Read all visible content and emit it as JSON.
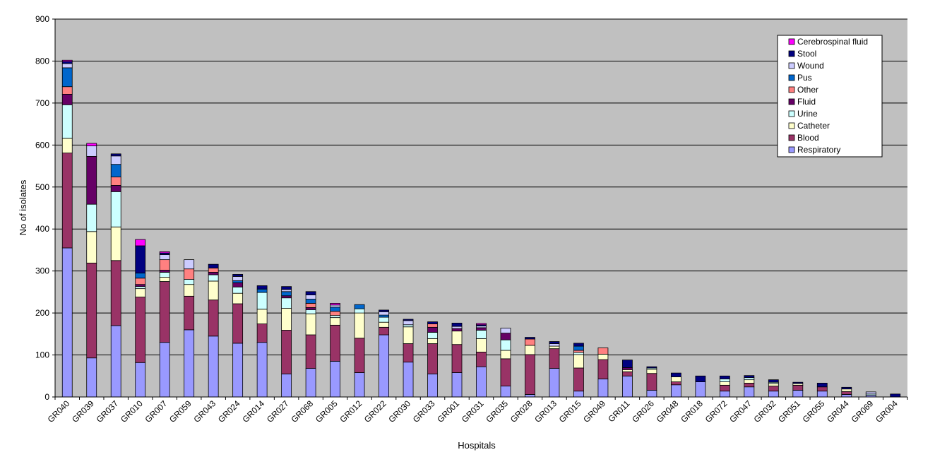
{
  "chart_data": {
    "type": "bar",
    "stacked": true,
    "title": "",
    "xlabel": "Hospitals",
    "ylabel": "No of isolates",
    "ylim": [
      0,
      900
    ],
    "yticks": [
      0,
      100,
      200,
      300,
      400,
      500,
      600,
      700,
      800,
      900
    ],
    "grid": true,
    "legend_position": "top-right",
    "plot_background": "#c0c0c0",
    "categories": [
      "GR040",
      "GR039",
      "GR037",
      "GR010",
      "GR007",
      "GR059",
      "GR043",
      "GR024",
      "GR014",
      "GR027",
      "GR068",
      "GR005",
      "GR012",
      "GR022",
      "GR030",
      "GR033",
      "GR001",
      "GR031",
      "GR035",
      "GR028",
      "GR013",
      "GR015",
      "GR049",
      "GR011",
      "GR026",
      "GR048",
      "GR018",
      "GR072",
      "GR047",
      "GR032",
      "GR051",
      "GR055",
      "GR044",
      "GR069",
      "GR004"
    ],
    "series": [
      {
        "name": "Respiratory",
        "color": "#9999ff",
        "values": [
          355,
          93,
          170,
          82,
          130,
          160,
          145,
          128,
          130,
          55,
          68,
          85,
          58,
          148,
          83,
          55,
          58,
          72,
          26,
          6,
          68,
          14,
          43,
          50,
          16,
          29,
          36,
          14,
          24,
          14,
          16,
          14,
          6,
          4,
          0
        ]
      },
      {
        "name": "Blood",
        "color": "#993366",
        "values": [
          226,
          226,
          155,
          156,
          145,
          80,
          86,
          94,
          44,
          104,
          80,
          86,
          82,
          18,
          44,
          72,
          67,
          35,
          65,
          95,
          47,
          55,
          46,
          10,
          40,
          7,
          0,
          14,
          9,
          12,
          12,
          10,
          7,
          0,
          0
        ]
      },
      {
        "name": "Catheter",
        "color": "#ffffcc",
        "values": [
          35,
          75,
          80,
          20,
          10,
          28,
          45,
          25,
          35,
          52,
          50,
          18,
          60,
          12,
          40,
          12,
          32,
          32,
          20,
          22,
          6,
          32,
          13,
          5,
          10,
          12,
          0,
          8,
          8,
          6,
          4,
          0,
          6,
          0,
          0
        ]
      },
      {
        "name": "Urine",
        "color": "#ccffff",
        "values": [
          80,
          65,
          84,
          5,
          12,
          12,
          15,
          15,
          40,
          25,
          10,
          5,
          10,
          12,
          5,
          15,
          0,
          20,
          25,
          0,
          0,
          5,
          0,
          0,
          3,
          0,
          0,
          7,
          5,
          3,
          0,
          0,
          0,
          3,
          0
        ]
      },
      {
        "name": "Fluid",
        "color": "#660066",
        "values": [
          25,
          114,
          15,
          5,
          5,
          0,
          6,
          10,
          0,
          5,
          5,
          0,
          0,
          0,
          0,
          12,
          6,
          6,
          16,
          0,
          0,
          0,
          0,
          5,
          0,
          0,
          0,
          0,
          0,
          0,
          0,
          0,
          0,
          0,
          0
        ]
      },
      {
        "name": "Other",
        "color": "#ff8080",
        "values": [
          18,
          0,
          20,
          15,
          25,
          25,
          10,
          0,
          0,
          0,
          10,
          10,
          0,
          0,
          0,
          8,
          0,
          0,
          0,
          15,
          0,
          5,
          15,
          0,
          0,
          0,
          0,
          0,
          0,
          0,
          0,
          0,
          0,
          0,
          0
        ]
      },
      {
        "name": "Pus",
        "color": "#0066cc",
        "values": [
          45,
          0,
          30,
          12,
          0,
          0,
          0,
          5,
          8,
          10,
          10,
          10,
          10,
          5,
          0,
          0,
          0,
          0,
          0,
          0,
          0,
          10,
          0,
          0,
          0,
          0,
          0,
          0,
          0,
          0,
          0,
          0,
          0,
          0,
          0
        ]
      },
      {
        "name": "Wound",
        "color": "#ccccff",
        "values": [
          10,
          25,
          20,
          0,
          12,
          22,
          0,
          10,
          0,
          5,
          10,
          5,
          0,
          8,
          10,
          0,
          5,
          4,
          12,
          0,
          6,
          0,
          0,
          0,
          0,
          0,
          0,
          0,
          0,
          0,
          0,
          0,
          0,
          5,
          0
        ]
      },
      {
        "name": "Stool",
        "color": "#000080",
        "values": [
          5,
          0,
          5,
          65,
          4,
          0,
          9,
          5,
          8,
          7,
          8,
          0,
          0,
          4,
          3,
          5,
          8,
          3,
          0,
          4,
          5,
          7,
          0,
          18,
          3,
          9,
          14,
          7,
          5,
          6,
          3,
          9,
          4,
          0,
          7
        ]
      },
      {
        "name": "Cerebrospinal fluid",
        "color": "#ff00ff",
        "values": [
          3,
          6,
          0,
          15,
          3,
          0,
          0,
          0,
          0,
          0,
          0,
          4,
          0,
          0,
          0,
          0,
          0,
          3,
          0,
          0,
          0,
          0,
          0,
          0,
          0,
          0,
          0,
          0,
          0,
          0,
          0,
          0,
          0,
          0,
          0
        ]
      }
    ]
  }
}
